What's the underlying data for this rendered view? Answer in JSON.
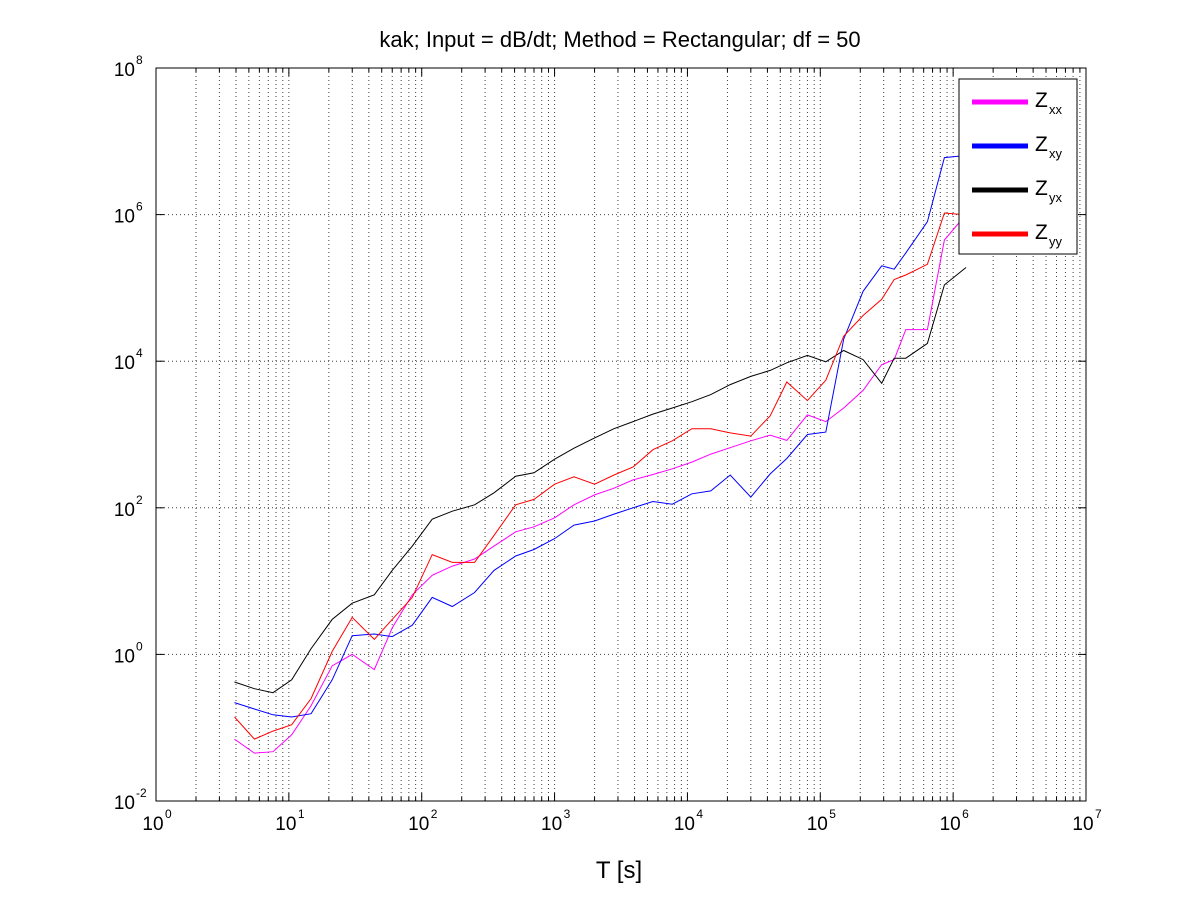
{
  "chart_data": {
    "type": "line",
    "title": "kak; Input = dB/dt; Method = Rectangular; df = 50",
    "xlabel": "T [s]",
    "ylabel": "",
    "xscale": "log",
    "yscale": "log",
    "xlim": [
      1,
      10000000
    ],
    "ylim": [
      0.01,
      100000000
    ],
    "x_ticks": [
      {
        "base": "10",
        "exp": "0"
      },
      {
        "base": "10",
        "exp": "1"
      },
      {
        "base": "10",
        "exp": "2"
      },
      {
        "base": "10",
        "exp": "3"
      },
      {
        "base": "10",
        "exp": "4"
      },
      {
        "base": "10",
        "exp": "5"
      },
      {
        "base": "10",
        "exp": "6"
      },
      {
        "base": "10",
        "exp": "7"
      }
    ],
    "y_ticks": [
      {
        "base": "10",
        "exp": "-2"
      },
      {
        "base": "10",
        "exp": "0"
      },
      {
        "base": "10",
        "exp": "2"
      },
      {
        "base": "10",
        "exp": "4"
      },
      {
        "base": "10",
        "exp": "6"
      },
      {
        "base": "10",
        "exp": "8"
      }
    ],
    "grid": true,
    "legend_position": "top-right",
    "series": [
      {
        "name": "Z",
        "sub": "xx",
        "color": "#ff00ff",
        "points": [
          [
            3.9,
            0.07
          ],
          [
            5.5,
            0.045
          ],
          [
            7.6,
            0.047
          ],
          [
            10.5,
            0.08
          ],
          [
            14.7,
            0.2
          ],
          [
            21.2,
            0.7
          ],
          [
            30,
            1
          ],
          [
            44,
            0.62
          ],
          [
            60,
            2.3
          ],
          [
            85,
            6.5
          ],
          [
            120,
            12
          ],
          [
            170,
            16
          ],
          [
            250,
            20
          ],
          [
            350,
            30
          ],
          [
            510,
            47
          ],
          [
            700,
            55
          ],
          [
            1000,
            73
          ],
          [
            1400,
            110
          ],
          [
            2000,
            150
          ],
          [
            2800,
            185
          ],
          [
            3900,
            240
          ],
          [
            5500,
            285
          ],
          [
            7700,
            340
          ],
          [
            10800,
            420
          ],
          [
            15000,
            540
          ],
          [
            21000,
            660
          ],
          [
            30000,
            820
          ],
          [
            42000,
            980
          ],
          [
            56000,
            830
          ],
          [
            80000,
            1850
          ],
          [
            110000,
            1500
          ],
          [
            150000,
            2300
          ],
          [
            210000,
            4000
          ],
          [
            290000,
            9000
          ],
          [
            360000,
            10500
          ],
          [
            440000,
            27000
          ],
          [
            640000,
            27000
          ],
          [
            860000,
            450000
          ],
          [
            1250000,
            1000000
          ]
        ]
      },
      {
        "name": "Z",
        "sub": "xy",
        "color": "#0000ff",
        "points": [
          [
            3.9,
            0.22
          ],
          [
            5.5,
            0.18
          ],
          [
            7.6,
            0.15
          ],
          [
            10.5,
            0.14
          ],
          [
            14.7,
            0.155
          ],
          [
            21.2,
            0.45
          ],
          [
            30,
            1.8
          ],
          [
            44,
            1.9
          ],
          [
            60,
            1.75
          ],
          [
            85,
            2.5
          ],
          [
            120,
            6
          ],
          [
            170,
            4.5
          ],
          [
            250,
            7
          ],
          [
            350,
            14
          ],
          [
            510,
            22
          ],
          [
            700,
            27
          ],
          [
            1000,
            38
          ],
          [
            1400,
            58
          ],
          [
            2000,
            66
          ],
          [
            2800,
            82
          ],
          [
            3900,
            100
          ],
          [
            5500,
            122
          ],
          [
            7700,
            112
          ],
          [
            10800,
            155
          ],
          [
            15000,
            170
          ],
          [
            21000,
            280
          ],
          [
            30000,
            140
          ],
          [
            42000,
            290
          ],
          [
            56000,
            470
          ],
          [
            80000,
            1000
          ],
          [
            110000,
            1080
          ],
          [
            150000,
            20000
          ],
          [
            210000,
            90000
          ],
          [
            290000,
            200000
          ],
          [
            360000,
            180000
          ],
          [
            440000,
            300000
          ],
          [
            640000,
            800000
          ],
          [
            860000,
            6000000
          ],
          [
            1250000,
            6400000
          ]
        ]
      },
      {
        "name": "Z",
        "sub": "yx",
        "color": "#000000",
        "points": [
          [
            3.9,
            0.42
          ],
          [
            5.5,
            0.34
          ],
          [
            7.6,
            0.3
          ],
          [
            10.5,
            0.45
          ],
          [
            14.7,
            1.2
          ],
          [
            21.2,
            3
          ],
          [
            30,
            5
          ],
          [
            44,
            6.5
          ],
          [
            60,
            14
          ],
          [
            85,
            30
          ],
          [
            120,
            70
          ],
          [
            170,
            90
          ],
          [
            250,
            110
          ],
          [
            350,
            160
          ],
          [
            510,
            270
          ],
          [
            700,
            300
          ],
          [
            1000,
            460
          ],
          [
            1400,
            650
          ],
          [
            2000,
            900
          ],
          [
            2800,
            1200
          ],
          [
            3900,
            1500
          ],
          [
            5500,
            1900
          ],
          [
            7700,
            2300
          ],
          [
            10800,
            2800
          ],
          [
            15000,
            3500
          ],
          [
            21000,
            4800
          ],
          [
            30000,
            6200
          ],
          [
            42000,
            7500
          ],
          [
            56000,
            9500
          ],
          [
            80000,
            12000
          ],
          [
            110000,
            9800
          ],
          [
            150000,
            14000
          ],
          [
            210000,
            10500
          ],
          [
            290000,
            5000
          ],
          [
            360000,
            11000
          ],
          [
            440000,
            11000
          ],
          [
            640000,
            17500
          ],
          [
            860000,
            110000
          ],
          [
            1250000,
            190000
          ]
        ]
      },
      {
        "name": "Z",
        "sub": "yy",
        "color": "#ff0000",
        "points": [
          [
            3.9,
            0.14
          ],
          [
            5.5,
            0.07
          ],
          [
            7.6,
            0.09
          ],
          [
            10.5,
            0.11
          ],
          [
            14.7,
            0.25
          ],
          [
            21.2,
            1.1
          ],
          [
            30,
            3.2
          ],
          [
            44,
            1.6
          ],
          [
            60,
            3
          ],
          [
            85,
            6
          ],
          [
            120,
            23
          ],
          [
            170,
            18
          ],
          [
            250,
            18
          ],
          [
            350,
            42
          ],
          [
            510,
            110
          ],
          [
            700,
            130
          ],
          [
            1000,
            210
          ],
          [
            1400,
            265
          ],
          [
            2000,
            210
          ],
          [
            2800,
            280
          ],
          [
            3900,
            360
          ],
          [
            5500,
            620
          ],
          [
            7700,
            820
          ],
          [
            10800,
            1200
          ],
          [
            15000,
            1200
          ],
          [
            21000,
            1050
          ],
          [
            30000,
            950
          ],
          [
            42000,
            1800
          ],
          [
            56000,
            5200
          ],
          [
            80000,
            2900
          ],
          [
            110000,
            5500
          ],
          [
            150000,
            22000
          ],
          [
            210000,
            42000
          ],
          [
            290000,
            70000
          ],
          [
            360000,
            130000
          ],
          [
            440000,
            150000
          ],
          [
            640000,
            210000
          ],
          [
            860000,
            1050000
          ],
          [
            1250000,
            990000
          ]
        ]
      }
    ]
  }
}
